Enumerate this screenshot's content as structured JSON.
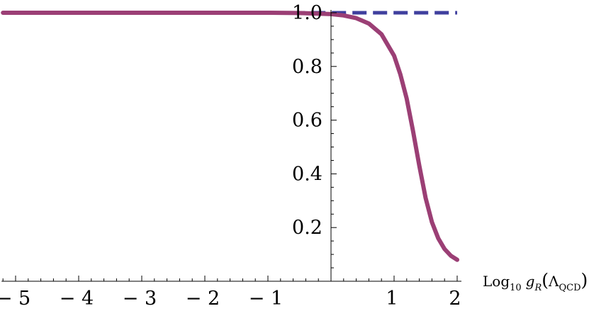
{
  "chart_data": {
    "type": "line",
    "title": "",
    "xlabel": "Log10 gR(ΛQCD)",
    "xlabel_parts": {
      "log": "Log",
      "base": "10",
      "var": "g",
      "var_sub": "R",
      "open": "(",
      "arg": "Λ",
      "arg_sub": "QCD",
      "close": ")"
    },
    "ylabel": "",
    "xlim": [
      -5.2,
      2.0
    ],
    "ylim": [
      0.0,
      1.0
    ],
    "x_ticks": [
      {
        "value": -5,
        "label": "− 5"
      },
      {
        "value": -4,
        "label": "− 4"
      },
      {
        "value": -3,
        "label": "− 3"
      },
      {
        "value": -2,
        "label": "− 2"
      },
      {
        "value": -1,
        "label": "− 1"
      },
      {
        "value": 1,
        "label": "1"
      },
      {
        "value": 2,
        "label": "2"
      }
    ],
    "y_ticks": [
      {
        "value": 0.2,
        "label": "0.2"
      },
      {
        "value": 0.4,
        "label": "0.4"
      },
      {
        "value": 0.6,
        "label": "0.6"
      },
      {
        "value": 0.8,
        "label": "0.8"
      },
      {
        "value": 1.0,
        "label": "1.0"
      }
    ],
    "grid": false,
    "series": [
      {
        "style": "dashed",
        "color": "#3f3f9e",
        "x": [
          -5.2,
          -4,
          -3,
          -2,
          -1,
          0,
          1,
          2
        ],
        "y": [
          1.0,
          1.0,
          1.0,
          1.0,
          1.0,
          1.0,
          1.0,
          1.0
        ]
      },
      {
        "style": "solid",
        "color": "#9b3f75",
        "x": [
          -5.2,
          -4,
          -3,
          -2,
          -1,
          -0.5,
          0,
          0.2,
          0.4,
          0.6,
          0.8,
          1.0,
          1.1,
          1.2,
          1.3,
          1.4,
          1.5,
          1.6,
          1.7,
          1.8,
          1.9,
          2.0
        ],
        "y": [
          1.0,
          1.0,
          1.0,
          1.0,
          1.0,
          0.999,
          0.995,
          0.99,
          0.98,
          0.96,
          0.92,
          0.84,
          0.77,
          0.68,
          0.56,
          0.43,
          0.31,
          0.22,
          0.16,
          0.12,
          0.095,
          0.08
        ]
      }
    ]
  }
}
